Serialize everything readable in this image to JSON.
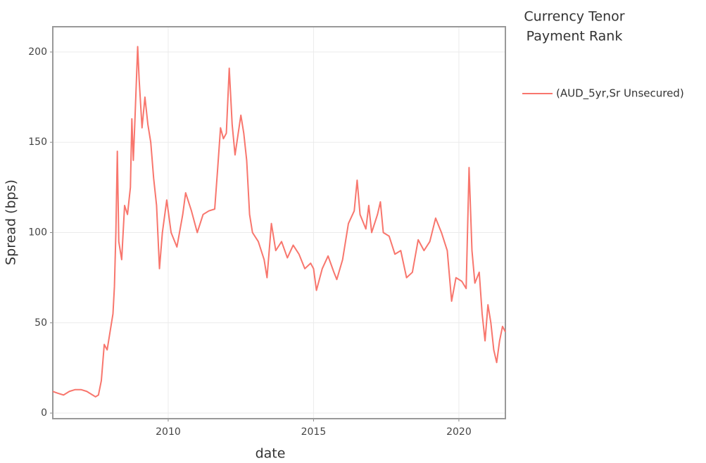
{
  "chart_data": {
    "type": "line",
    "legend_title": [
      "Currency Tenor",
      "Payment Rank"
    ],
    "x_label": "date",
    "y_label": "Spread (bps)",
    "x": [
      2006.03,
      2006.2,
      2006.4,
      2006.6,
      2006.8,
      2007.0,
      2007.2,
      2007.4,
      2007.5,
      2007.6,
      2007.7,
      2007.8,
      2007.9,
      2008.0,
      2008.1,
      2008.15,
      2008.2,
      2008.25,
      2008.3,
      2008.4,
      2008.5,
      2008.6,
      2008.7,
      2008.75,
      2008.8,
      2008.85,
      2008.95,
      2009.0,
      2009.1,
      2009.2,
      2009.3,
      2009.4,
      2009.5,
      2009.6,
      2009.7,
      2009.8,
      2009.95,
      2010.1,
      2010.3,
      2010.5,
      2010.6,
      2010.8,
      2011.0,
      2011.2,
      2011.4,
      2011.6,
      2011.7,
      2011.8,
      2011.9,
      2012.0,
      2012.1,
      2012.2,
      2012.3,
      2012.5,
      2012.6,
      2012.7,
      2012.8,
      2012.9,
      2013.1,
      2013.3,
      2013.4,
      2013.55,
      2013.7,
      2013.9,
      2014.1,
      2014.3,
      2014.5,
      2014.7,
      2014.9,
      2015.0,
      2015.1,
      2015.3,
      2015.5,
      2015.7,
      2015.8,
      2016.0,
      2016.2,
      2016.4,
      2016.5,
      2016.6,
      2016.8,
      2016.9,
      2017.0,
      2017.2,
      2017.3,
      2017.4,
      2017.6,
      2017.8,
      2018.0,
      2018.2,
      2018.4,
      2018.6,
      2018.8,
      2019.0,
      2019.2,
      2019.4,
      2019.6,
      2019.75,
      2019.9,
      2020.1,
      2020.25,
      2020.35,
      2020.45,
      2020.55,
      2020.7,
      2020.8,
      2020.9,
      2021.0,
      2021.1,
      2021.2,
      2021.3,
      2021.4,
      2021.5,
      2021.6
    ],
    "series": [
      {
        "name": "(AUD_5yr,Sr Unsecured)",
        "color": "#f8766d",
        "values": [
          12,
          11,
          10,
          12,
          13,
          13,
          12,
          10,
          9,
          10,
          18,
          38,
          35,
          45,
          55,
          70,
          100,
          145,
          95,
          85,
          115,
          110,
          125,
          163,
          140,
          160,
          203,
          185,
          158,
          175,
          160,
          150,
          130,
          115,
          80,
          100,
          118,
          100,
          92,
          110,
          122,
          112,
          100,
          110,
          112,
          113,
          135,
          158,
          152,
          155,
          191,
          160,
          143,
          165,
          155,
          140,
          110,
          100,
          95,
          85,
          75,
          105,
          90,
          95,
          86,
          93,
          88,
          80,
          83,
          80,
          68,
          80,
          87,
          78,
          74,
          85,
          105,
          112,
          129,
          110,
          102,
          115,
          100,
          110,
          117,
          100,
          98,
          88,
          90,
          75,
          78,
          96,
          90,
          95,
          108,
          100,
          90,
          62,
          75,
          73,
          69,
          136,
          90,
          72,
          78,
          55,
          40,
          60,
          50,
          35,
          28,
          40,
          48,
          45
        ]
      }
    ],
    "xlim": [
      2006.03,
      2021.6
    ],
    "xticks": [
      2010,
      2015,
      2020
    ],
    "ylim": [
      -3.1,
      214
    ],
    "yticks": [
      0,
      50,
      100,
      150,
      200
    ],
    "grid": true
  }
}
